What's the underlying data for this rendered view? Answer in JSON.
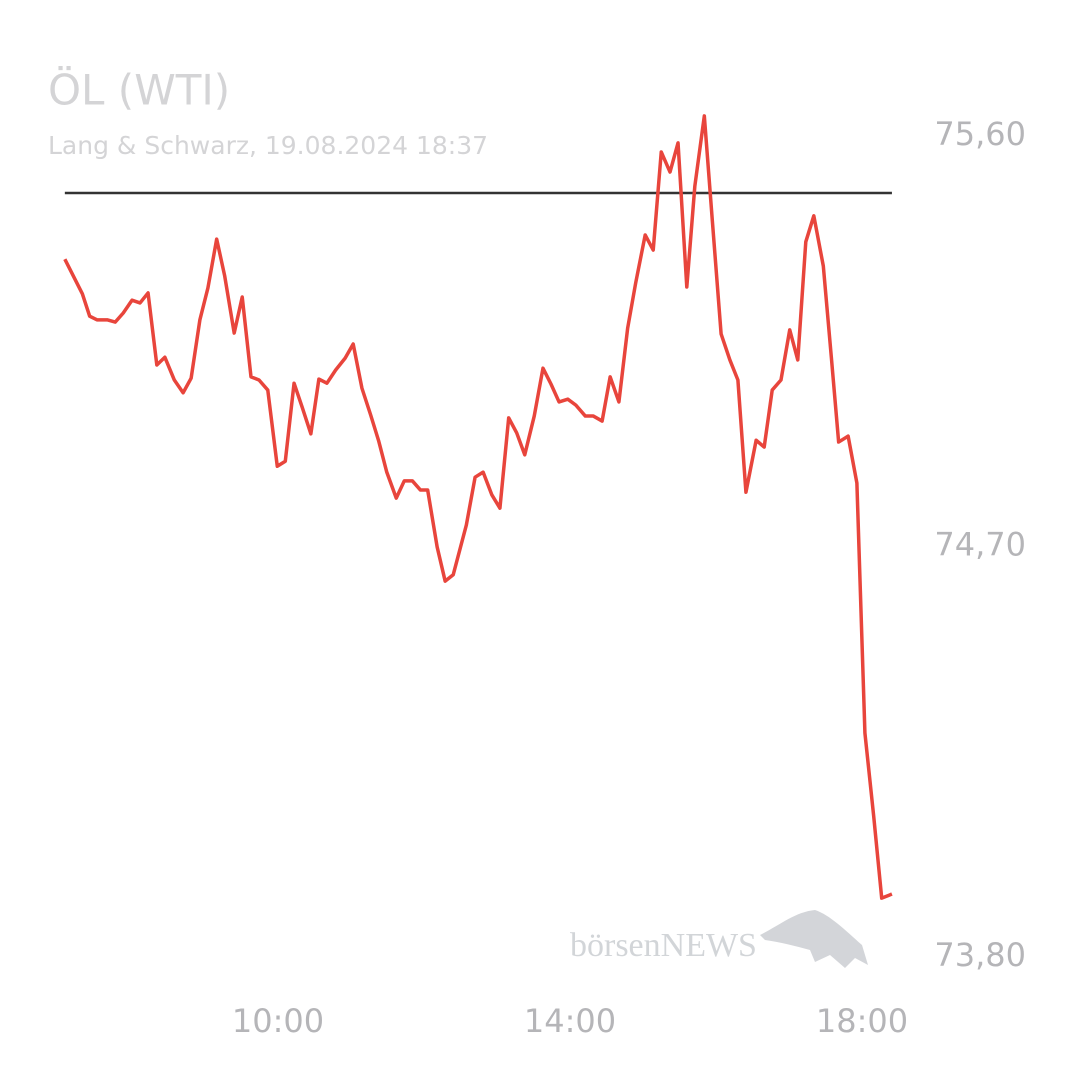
{
  "chart_data": {
    "type": "line",
    "title": "ÖL (WTI)",
    "subtitle": "Lang & Schwarz, 19.08.2024 18:37",
    "watermark": "börsenNEWS",
    "x": [
      7.08,
      7.32,
      7.42,
      7.52,
      7.66,
      7.77,
      7.88,
      8.0,
      8.11,
      8.22,
      8.34,
      8.45,
      8.58,
      8.7,
      8.81,
      8.93,
      9.04,
      9.16,
      9.27,
      9.4,
      9.51,
      9.63,
      9.74,
      9.86,
      9.99,
      10.1,
      10.22,
      10.33,
      10.45,
      10.56,
      10.67,
      10.79,
      10.92,
      11.03,
      11.15,
      11.27,
      11.38,
      11.49,
      11.62,
      11.73,
      11.84,
      11.95,
      12.05,
      12.18,
      12.29,
      12.4,
      12.58,
      12.7,
      12.81,
      12.93,
      13.04,
      13.16,
      13.27,
      13.38,
      13.51,
      13.63,
      13.74,
      13.85,
      13.97,
      14.08,
      14.21,
      14.32,
      14.44,
      14.55,
      14.67,
      14.79,
      14.9,
      15.03,
      15.14,
      15.25,
      15.37,
      15.48,
      15.6,
      15.71,
      15.84,
      15.95,
      16.07,
      16.19,
      16.3,
      16.41,
      16.55,
      16.66,
      16.77,
      16.89,
      17.01,
      17.12,
      17.23,
      17.34,
      17.47,
      17.58,
      17.68,
      17.81,
      17.93,
      18.04,
      18.16,
      18.27,
      18.41
    ],
    "series": [
      {
        "color": "#e8453c",
        "values": [
          75.33,
          75.254,
          75.205,
          75.197,
          75.197,
          75.192,
          75.212,
          75.24,
          75.234,
          75.256,
          75.098,
          75.115,
          75.065,
          75.037,
          75.069,
          75.197,
          75.267,
          75.374,
          75.293,
          75.168,
          75.247,
          75.072,
          75.065,
          75.043,
          74.876,
          74.887,
          75.058,
          75.006,
          74.947,
          75.067,
          75.058,
          75.087,
          75.113,
          75.144,
          75.047,
          74.988,
          74.931,
          74.863,
          74.806,
          74.844,
          74.844,
          74.824,
          74.824,
          74.699,
          74.624,
          74.638,
          74.747,
          74.852,
          74.863,
          74.813,
          74.784,
          74.982,
          74.949,
          74.901,
          74.986,
          75.091,
          75.056,
          75.017,
          75.023,
          75.01,
          74.986,
          74.986,
          74.975,
          75.072,
          75.017,
          75.179,
          75.278,
          75.383,
          75.35,
          75.565,
          75.521,
          75.585,
          75.269,
          75.49,
          75.644,
          75.414,
          75.166,
          75.109,
          75.065,
          74.819,
          74.933,
          74.918,
          75.043,
          75.065,
          75.175,
          75.109,
          75.368,
          75.425,
          75.315,
          75.115,
          74.929,
          74.942,
          74.839,
          74.291,
          74.109,
          73.929,
          73.938
        ]
      }
    ],
    "reference_line": 75.475,
    "xlim": [
      7.0,
      18.5
    ],
    "xticks": [
      {
        "value": 10,
        "label": "10:00"
      },
      {
        "value": 14,
        "label": "14:00"
      },
      {
        "value": 18,
        "label": "18:00"
      }
    ],
    "ylim": [
      73.75,
      75.7
    ],
    "yticks": [
      {
        "value": 73.8,
        "label": "73,80"
      },
      {
        "value": 74.7,
        "label": "74,70"
      },
      {
        "value": 75.6,
        "label": "75,60"
      }
    ]
  }
}
